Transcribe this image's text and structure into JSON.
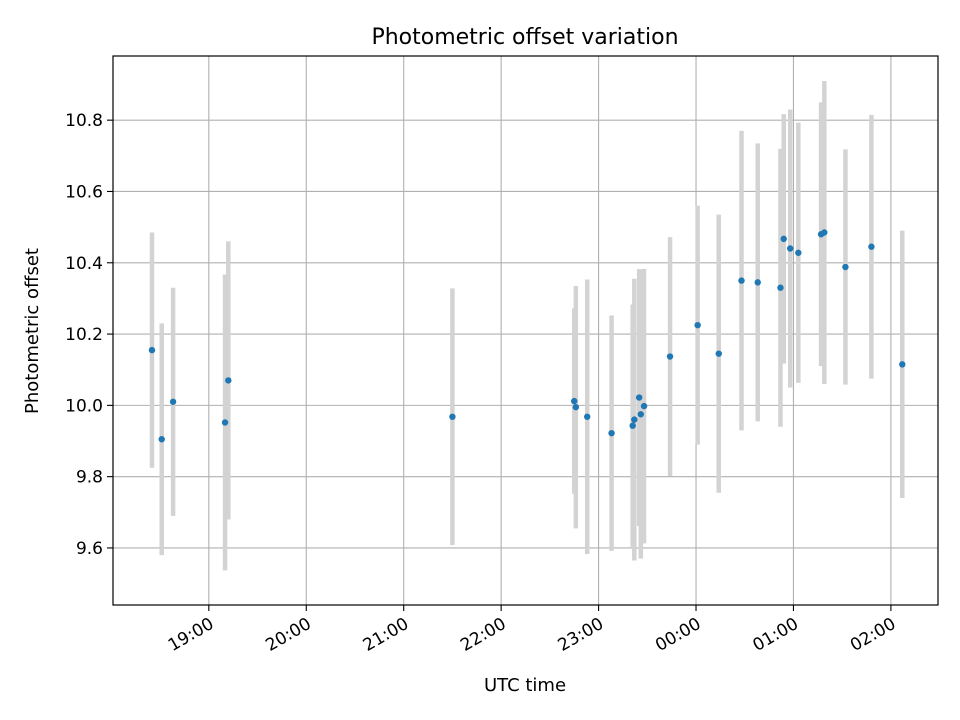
{
  "chart_data": {
    "type": "scatter",
    "title": "Photometric offset variation",
    "xlabel": "UTC time",
    "ylabel": "Photometric offset",
    "x_ticks": [
      "19:00",
      "20:00",
      "21:00",
      "22:00",
      "23:00",
      "00:00",
      "01:00",
      "02:00"
    ],
    "y_ticks": [
      "9.6",
      "9.8",
      "10.0",
      "10.2",
      "10.4",
      "10.6",
      "10.8"
    ],
    "xlim": [
      "18:01",
      "02:29"
    ],
    "ylim": [
      9.44,
      10.98
    ],
    "grid": true,
    "marker_color": "#1f77b4",
    "errorbar_color": "#d3d3d3",
    "points": [
      {
        "x": "18:25",
        "y": 10.155,
        "err": 0.33
      },
      {
        "x": "18:31",
        "y": 9.905,
        "err": 0.325
      },
      {
        "x": "18:38",
        "y": 10.01,
        "err": 0.32
      },
      {
        "x": "19:10",
        "y": 9.952,
        "err": 0.415
      },
      {
        "x": "19:12",
        "y": 10.07,
        "err": 0.39
      },
      {
        "x": "21:30",
        "y": 9.968,
        "err": 0.36
      },
      {
        "x": "22:45",
        "y": 10.012,
        "err": 0.26
      },
      {
        "x": "22:46",
        "y": 9.995,
        "err": 0.34
      },
      {
        "x": "22:53",
        "y": 9.968,
        "err": 0.385
      },
      {
        "x": "23:08",
        "y": 9.922,
        "err": 0.33
      },
      {
        "x": "23:21",
        "y": 9.943,
        "err": 0.34
      },
      {
        "x": "23:22",
        "y": 9.96,
        "err": 0.395
      },
      {
        "x": "23:25",
        "y": 10.022,
        "err": 0.36
      },
      {
        "x": "23:26",
        "y": 9.975,
        "err": 0.405
      },
      {
        "x": "23:28",
        "y": 9.998,
        "err": 0.385
      },
      {
        "x": "23:44",
        "y": 10.137,
        "err": 0.335
      },
      {
        "x": "00:01",
        "y": 10.225,
        "err": 0.335
      },
      {
        "x": "00:14",
        "y": 10.145,
        "err": 0.39
      },
      {
        "x": "00:28",
        "y": 10.35,
        "err": 0.42
      },
      {
        "x": "00:38",
        "y": 10.345,
        "err": 0.39
      },
      {
        "x": "00:52",
        "y": 10.33,
        "err": 0.39
      },
      {
        "x": "00:54",
        "y": 10.467,
        "err": 0.35
      },
      {
        "x": "00:58",
        "y": 10.44,
        "err": 0.39
      },
      {
        "x": "01:03",
        "y": 10.428,
        "err": 0.365
      },
      {
        "x": "01:17",
        "y": 10.48,
        "err": 0.37
      },
      {
        "x": "01:19",
        "y": 10.485,
        "err": 0.425
      },
      {
        "x": "01:32",
        "y": 10.388,
        "err": 0.33
      },
      {
        "x": "01:48",
        "y": 10.445,
        "err": 0.37
      },
      {
        "x": "02:07",
        "y": 10.115,
        "err": 0.375
      }
    ]
  }
}
